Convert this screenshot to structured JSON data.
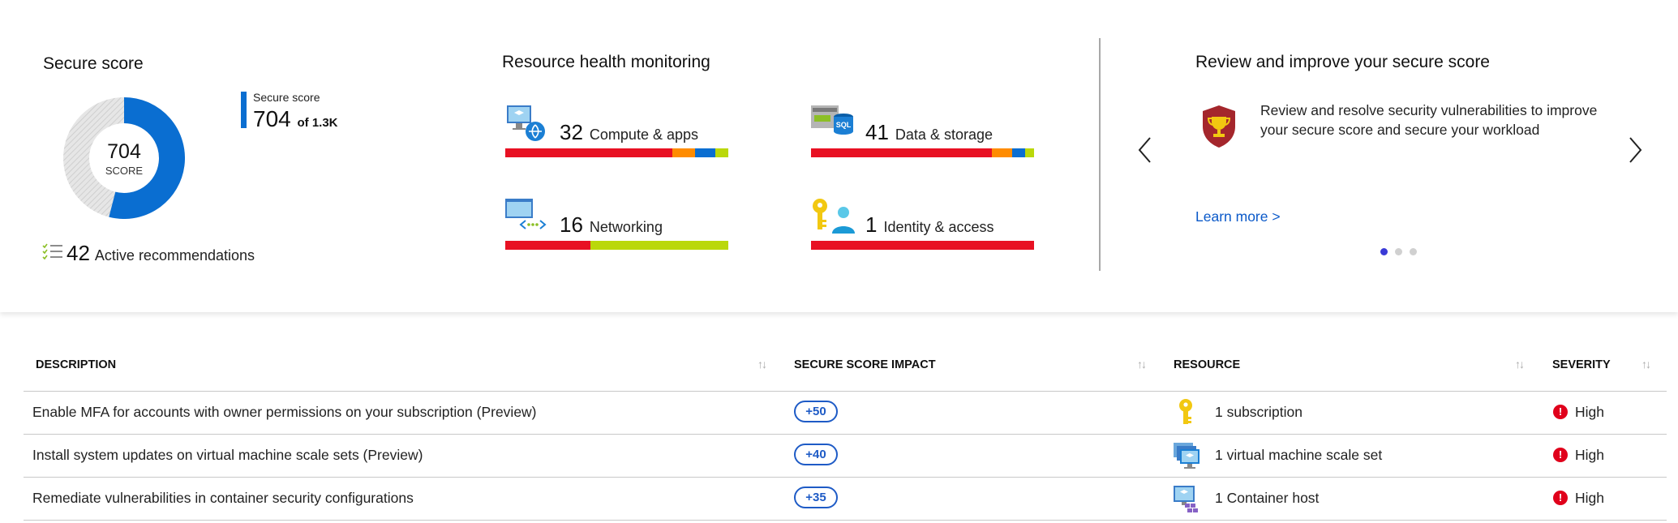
{
  "secure_score": {
    "title": "Secure score",
    "legend_label": "Secure score",
    "score": "704",
    "max": "of 1.3K",
    "donut_score": "704",
    "donut_label": "SCORE",
    "score_fraction": 0.54,
    "active_count": "42",
    "active_label": "Active recommendations",
    "colors": {
      "score": "#0a6ed1",
      "remaining": "#d9d9d9"
    }
  },
  "resource_health": {
    "title": "Resource health monitoring",
    "items": [
      {
        "count": "32",
        "label": "Compute & apps",
        "icon": "compute-apps-icon",
        "segments": [
          {
            "color": "#e81123",
            "value": 75
          },
          {
            "color": "#ff8c00",
            "value": 10
          },
          {
            "color": "#0a6ed1",
            "value": 9
          },
          {
            "color": "#bad80a",
            "value": 6
          }
        ]
      },
      {
        "count": "41",
        "label": "Data & storage",
        "icon": "sql-storage-icon",
        "segments": [
          {
            "color": "#e81123",
            "value": 81
          },
          {
            "color": "#ff8c00",
            "value": 9
          },
          {
            "color": "#0a6ed1",
            "value": 6
          },
          {
            "color": "#bad80a",
            "value": 4
          }
        ]
      },
      {
        "count": "16",
        "label": "Networking",
        "icon": "networking-icon",
        "segments": [
          {
            "color": "#e81123",
            "value": 38
          },
          {
            "color": "#bad80a",
            "value": 62
          }
        ]
      },
      {
        "count": "1",
        "label": "Identity & access",
        "icon": "identity-key-icon",
        "segments": [
          {
            "color": "#e81123",
            "value": 100
          }
        ]
      }
    ]
  },
  "carousel": {
    "title": "Review and improve your secure score",
    "description": "Review and resolve security vulnerabilities to improve your secure score and secure your workload",
    "link": "Learn more >",
    "prev_icon": "chevron-left-icon",
    "next_icon": "chevron-right-icon",
    "active_dot": 0,
    "dot_count": 3,
    "dot_active_color": "#3a3ad6",
    "dot_inactive_color": "#d0d0d0"
  },
  "table": {
    "headers": {
      "description": "DESCRIPTION",
      "impact": "SECURE SCORE IMPACT",
      "resource": "RESOURCE",
      "severity": "SEVERITY"
    },
    "sort_glyph": "↑↓",
    "rows": [
      {
        "description": "Enable MFA for accounts with owner permissions on your subscription (Preview)",
        "impact": "+50",
        "resource": "1 subscription",
        "resource_icon": "subscription-key-icon",
        "severity": "High"
      },
      {
        "description": "Install system updates on virtual machine scale sets (Preview)",
        "impact": "+40",
        "resource": "1 virtual machine scale set",
        "resource_icon": "vm-scale-set-icon",
        "severity": "High"
      },
      {
        "description": "Remediate vulnerabilities in container security configurations",
        "impact": "+35",
        "resource": "1 Container host",
        "resource_icon": "container-host-icon",
        "severity": "High"
      }
    ]
  }
}
